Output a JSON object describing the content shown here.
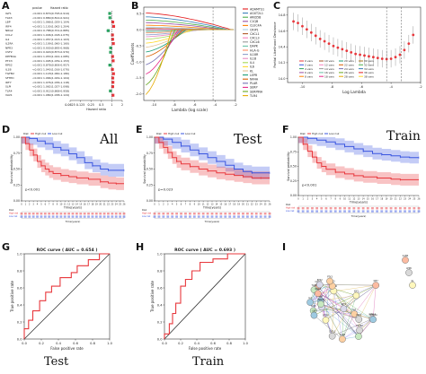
{
  "panels": {
    "A": "A",
    "B": "B",
    "C": "C",
    "D": "D",
    "E": "E",
    "F": "F",
    "G": "G",
    "H": "H",
    "I": "I"
  },
  "labels": {
    "all": "All",
    "test": "Test",
    "train": "Train",
    "test_bottom": "Test",
    "train_bottom": "Train"
  },
  "colors": {
    "high": "#e8383d",
    "low": "#3a56e0",
    "roc": "#e8383d",
    "diag": "#333333"
  },
  "chart_data": [
    {
      "id": "A",
      "type": "forest",
      "columns": [
        "",
        "pvalue",
        "Hazard ratio"
      ],
      "genes": [
        "IGF1",
        "TLR3",
        "LBP",
        "IRF4",
        "NRG2",
        "CCL2",
        "IL2",
        "IL2RA",
        "NPR3",
        "CSF2",
        "DEFB4A",
        "PTX3",
        "RPS2",
        "IL1B",
        "TGFB2",
        "SFTPD",
        "IRF7",
        "SLPI",
        "TLR4",
        "VAV1"
      ],
      "pvalues": [
        "<0.001",
        "<0.001",
        "<0.001",
        "<0.001",
        "<0.001",
        "<0.001",
        "<0.001",
        "<0.001",
        "<0.001",
        "<0.001",
        "<0.001",
        "<0.001",
        "<0.001",
        "<0.001",
        "<0.001",
        "<0.001",
        "<0.001",
        "<0.001",
        "<0.001",
        "<0.001"
      ],
      "hr_text": [
        "0.870(0.795-0.914)",
        "0.880(0.812-0.941)",
        "1.066(1.029-1.104)",
        "1.130(1.062-1.204)",
        "0.788(0.701-0.885)",
        "1.046(1.018-1.075)",
        "1.057(1.013-1.103)",
        "1.109(1.060-1.160)",
        "0.930(0.895-0.968)",
        "0.920(0.873-0.970)",
        "1.053(1.022-1.085)",
        "1.095(1.039-1.153)",
        "0.878(0.806-0.957)",
        "1.043(1.016-1.070)",
        "1.118(1.060-1.180)",
        "1.066(1.029-1.104)",
        "1.076(1.036-1.118)",
        "1.062(1.027-1.098)",
        "0.912(0.868-0.958)",
        "1.080(1.038-1.124)"
      ],
      "hr": [
        0.87,
        0.88,
        1.066,
        1.13,
        0.788,
        1.046,
        1.057,
        1.109,
        0.93,
        0.92,
        1.053,
        1.095,
        0.878,
        1.043,
        1.118,
        1.066,
        1.076,
        1.062,
        0.912,
        1.08
      ],
      "lo": [
        0.795,
        0.812,
        1.029,
        1.062,
        0.701,
        1.018,
        1.013,
        1.06,
        0.895,
        0.873,
        1.022,
        1.039,
        0.806,
        1.016,
        1.06,
        1.029,
        1.036,
        1.027,
        0.868,
        1.038
      ],
      "hi": [
        0.914,
        0.941,
        1.104,
        1.204,
        0.885,
        1.075,
        1.103,
        1.16,
        0.968,
        0.97,
        1.085,
        1.153,
        0.957,
        1.07,
        1.18,
        1.104,
        1.118,
        1.098,
        0.958,
        1.124
      ],
      "xticks": [
        "0.0625",
        "0.125",
        "0.25",
        "0.5",
        "1",
        "2"
      ],
      "xlabel": "Hazard ratio"
    },
    {
      "id": "B",
      "type": "line",
      "xlabel": "Lambda (log scale)",
      "ylabel": "Coefficients",
      "yticks": [
        "0.5",
        "0.0",
        "-0.5",
        "-1.0",
        "-1.5",
        "-2.0"
      ],
      "xticks": [
        "-10",
        "-8",
        "-6",
        "-4",
        "-2"
      ],
      "xlim": [
        -11,
        -2
      ],
      "ylim": [
        -2.2,
        0.7
      ],
      "legend": [
        "ADAMTS1",
        "AGXT2L1",
        "ARID5B",
        "C1QB",
        "CLEC4A",
        "CRIP1",
        "CXCL1",
        "CXCL3",
        "CXCL6",
        "DAPK",
        "HLA-G",
        "IL18R",
        "IL1B",
        "IL4",
        "IL6",
        "KL",
        "LEPR",
        "NR4A",
        "PLAR",
        "SERP",
        "SERPINA",
        "TLR4"
      ],
      "series_colors": [
        "#e41a1c",
        "#377eb8",
        "#4daf4a",
        "#984ea3",
        "#ff7f00",
        "#a6cee3",
        "#b15928",
        "#f781bf",
        "#999999",
        "#66c2a5",
        "#fc8d62",
        "#8da0cb",
        "#e78ac3",
        "#a6d854",
        "#ffd92f",
        "#e5c494",
        "#1b9e77",
        "#d95f02",
        "#7570b3",
        "#e7298a",
        "#66a61e",
        "#e6ab02"
      ],
      "final_values": [
        0.52,
        0.4,
        0.3,
        0.22,
        0.14,
        0.08,
        0.04,
        0.02,
        -0.02,
        -0.06,
        -0.1,
        -0.16,
        -0.22,
        -0.3,
        -0.42,
        -0.55,
        -0.7,
        -0.85,
        -1.1,
        -1.4,
        -1.75,
        -2.05
      ],
      "vline": -4.2
    },
    {
      "id": "C",
      "type": "errorbar",
      "xlabel": "Log Lambda",
      "ylabel": "Partial Likelihood Deviance",
      "xticks": [
        "-10",
        "-8",
        "-6",
        "-4",
        "-2"
      ],
      "yticks": [
        "14.8",
        "14.6",
        "14.4",
        "14.2",
        "14.0"
      ],
      "xlim": [
        -11,
        -2
      ],
      "ylim": [
        13.95,
        14.9
      ],
      "x": [
        -10.6,
        -10.3,
        -10.0,
        -9.7,
        -9.4,
        -9.1,
        -8.8,
        -8.5,
        -8.2,
        -7.9,
        -7.6,
        -7.3,
        -7.0,
        -6.7,
        -6.4,
        -6.1,
        -5.8,
        -5.5,
        -5.2,
        -4.9,
        -4.6,
        -4.3,
        -4.0,
        -3.7,
        -3.4,
        -3.1,
        -2.8,
        -2.5
      ],
      "y": [
        14.72,
        14.7,
        14.66,
        14.62,
        14.58,
        14.54,
        14.5,
        14.47,
        14.44,
        14.41,
        14.39,
        14.37,
        14.35,
        14.33,
        14.31,
        14.3,
        14.29,
        14.28,
        14.27,
        14.26,
        14.25,
        14.245,
        14.25,
        14.27,
        14.3,
        14.36,
        14.44,
        14.55
      ],
      "err": 0.11,
      "vlines": [
        -4.3,
        -3.3
      ],
      "legend": [
        "0 vars",
        "2 vars",
        "4 vars",
        "6 vars",
        "8 vars",
        "10 vars",
        "12 vars",
        "14 vars",
        "16 vars",
        "18 vars",
        "20 vars",
        "22 vars",
        "24 vars",
        "26 vars",
        "28 vars",
        "30 vars",
        "32 vars",
        "34 vars",
        "36 vars",
        "38 vars"
      ]
    },
    {
      "id": "D",
      "type": "survival",
      "legend": [
        "Risk",
        "High risk",
        "Low risk"
      ],
      "ylabel": "Survival probability",
      "xlabel": "Time(years)",
      "pvalue": "p<0.001",
      "yticks": [
        "1.00",
        "0.75",
        "0.50",
        "0.25",
        "0.00"
      ],
      "xticks": [
        "0",
        "1",
        "2",
        "3",
        "4",
        "5",
        "6",
        "7",
        "8",
        "9",
        "10",
        "11",
        "12",
        "13",
        "14",
        "15",
        "16",
        "17",
        "18",
        "19",
        "20",
        "21",
        "22",
        "23",
        "24",
        "25",
        "26"
      ],
      "xmax": 26,
      "high": [
        [
          0,
          1
        ],
        [
          1,
          0.9
        ],
        [
          2,
          0.8
        ],
        [
          3,
          0.72
        ],
        [
          4,
          0.62
        ],
        [
          5,
          0.55
        ],
        [
          6,
          0.5
        ],
        [
          7,
          0.46
        ],
        [
          8,
          0.43
        ],
        [
          10,
          0.4
        ],
        [
          12,
          0.38
        ],
        [
          14,
          0.36
        ],
        [
          17,
          0.34
        ],
        [
          20,
          0.3
        ],
        [
          22,
          0.28
        ],
        [
          24,
          0.27
        ],
        [
          26,
          0.27
        ]
      ],
      "low": [
        [
          0,
          1
        ],
        [
          2,
          0.98
        ],
        [
          4,
          0.94
        ],
        [
          6,
          0.9
        ],
        [
          8,
          0.84
        ],
        [
          10,
          0.8
        ],
        [
          12,
          0.74
        ],
        [
          14,
          0.68
        ],
        [
          16,
          0.6
        ],
        [
          18,
          0.55
        ],
        [
          20,
          0.5
        ],
        [
          22,
          0.48
        ],
        [
          24,
          0.48
        ],
        [
          26,
          0.48
        ]
      ],
      "risk_table_labels": [
        "High risk",
        "Low risk"
      ],
      "risk_title": "Risk"
    },
    {
      "id": "E",
      "type": "survival",
      "legend": [
        "Risk",
        "High risk",
        "Low risk"
      ],
      "ylabel": "Survival probability",
      "xlabel": "Time(years)",
      "pvalue": "p=0.023",
      "yticks": [
        "1.00",
        "0.75",
        "0.50",
        "0.25",
        "0.00"
      ],
      "xticks": [
        "0",
        "1",
        "2",
        "3",
        "4",
        "5",
        "6",
        "7",
        "8",
        "9",
        "10",
        "11",
        "12",
        "13",
        "14",
        "15",
        "16",
        "17",
        "18",
        "19",
        "20",
        "21",
        "22",
        "23",
        "24",
        "25",
        "26"
      ],
      "xmax": 26,
      "high": [
        [
          0,
          1
        ],
        [
          1,
          0.92
        ],
        [
          2,
          0.84
        ],
        [
          3,
          0.76
        ],
        [
          4,
          0.68
        ],
        [
          5,
          0.62
        ],
        [
          6,
          0.58
        ],
        [
          8,
          0.54
        ],
        [
          10,
          0.5
        ],
        [
          12,
          0.47
        ],
        [
          14,
          0.44
        ],
        [
          16,
          0.42
        ],
        [
          18,
          0.4
        ],
        [
          20,
          0.38
        ],
        [
          22,
          0.36
        ],
        [
          24,
          0.36
        ],
        [
          26,
          0.36
        ]
      ],
      "low": [
        [
          0,
          1
        ],
        [
          2,
          0.97
        ],
        [
          4,
          0.92
        ],
        [
          6,
          0.86
        ],
        [
          8,
          0.8
        ],
        [
          10,
          0.74
        ],
        [
          12,
          0.68
        ],
        [
          14,
          0.62
        ],
        [
          16,
          0.56
        ],
        [
          18,
          0.5
        ],
        [
          20,
          0.46
        ],
        [
          22,
          0.44
        ],
        [
          24,
          0.44
        ],
        [
          26,
          0.44
        ]
      ],
      "risk_table_labels": [
        "High risk",
        "Low risk"
      ],
      "risk_title": "Risk"
    },
    {
      "id": "F",
      "type": "survival",
      "legend": [
        "Risk",
        "High risk",
        "Low risk"
      ],
      "ylabel": "Survival probability",
      "xlabel": "Time(years)",
      "pvalue": "p<0.001",
      "yticks": [
        "1.00",
        "0.75",
        "0.50",
        "0.25",
        "0.00"
      ],
      "xticks": [
        "0",
        "1",
        "2",
        "3",
        "4",
        "5",
        "6",
        "7",
        "8",
        "9",
        "10",
        "11",
        "12",
        "13",
        "14",
        "15",
        "16",
        "17",
        "18",
        "19",
        "20",
        "21",
        "22",
        "23",
        "24",
        "25",
        "26"
      ],
      "xmax": 26,
      "high": [
        [
          0,
          1
        ],
        [
          1,
          0.88
        ],
        [
          2,
          0.76
        ],
        [
          3,
          0.66
        ],
        [
          4,
          0.56
        ],
        [
          5,
          0.5
        ],
        [
          6,
          0.45
        ],
        [
          8,
          0.4
        ],
        [
          10,
          0.37
        ],
        [
          12,
          0.34
        ],
        [
          14,
          0.32
        ],
        [
          17,
          0.3
        ],
        [
          20,
          0.28
        ],
        [
          22,
          0.27
        ],
        [
          26,
          0.27
        ]
      ],
      "low": [
        [
          0,
          1
        ],
        [
          2,
          0.98
        ],
        [
          4,
          0.95
        ],
        [
          6,
          0.92
        ],
        [
          8,
          0.88
        ],
        [
          10,
          0.84
        ],
        [
          12,
          0.8
        ],
        [
          14,
          0.76
        ],
        [
          16,
          0.72
        ],
        [
          18,
          0.7
        ],
        [
          20,
          0.68
        ],
        [
          22,
          0.66
        ],
        [
          24,
          0.65
        ],
        [
          26,
          0.65
        ]
      ],
      "risk_table_labels": [
        "High risk",
        "Low risk"
      ],
      "risk_title": "Risk"
    },
    {
      "id": "G",
      "type": "roc",
      "title": "ROC curve ( AUC = 0.654 )",
      "xlabel": "False positive rate",
      "ylabel": "True positive rate",
      "ticks": [
        "0.0",
        "0.2",
        "0.4",
        "0.6",
        "0.8",
        "1.0"
      ],
      "points": [
        [
          0,
          0
        ],
        [
          0,
          0.12
        ],
        [
          0.05,
          0.12
        ],
        [
          0.05,
          0.22
        ],
        [
          0.1,
          0.22
        ],
        [
          0.1,
          0.33
        ],
        [
          0.18,
          0.33
        ],
        [
          0.18,
          0.45
        ],
        [
          0.25,
          0.45
        ],
        [
          0.25,
          0.55
        ],
        [
          0.32,
          0.55
        ],
        [
          0.32,
          0.62
        ],
        [
          0.42,
          0.62
        ],
        [
          0.42,
          0.72
        ],
        [
          0.55,
          0.72
        ],
        [
          0.55,
          0.78
        ],
        [
          0.62,
          0.78
        ],
        [
          0.62,
          0.86
        ],
        [
          0.75,
          0.86
        ],
        [
          0.75,
          0.93
        ],
        [
          0.88,
          0.93
        ],
        [
          0.88,
          1
        ],
        [
          1,
          1
        ]
      ]
    },
    {
      "id": "H",
      "type": "roc",
      "title": "ROC curve ( AUC = 0.693 )",
      "xlabel": "False positive rate",
      "ylabel": "True positive rate",
      "ticks": [
        "0.0",
        "0.2",
        "0.4",
        "0.6",
        "0.8",
        "1.0"
      ],
      "points": [
        [
          0,
          0
        ],
        [
          0,
          0.06
        ],
        [
          0.06,
          0.06
        ],
        [
          0.06,
          0.18
        ],
        [
          0.1,
          0.18
        ],
        [
          0.1,
          0.3
        ],
        [
          0.14,
          0.3
        ],
        [
          0.14,
          0.42
        ],
        [
          0.2,
          0.42
        ],
        [
          0.2,
          0.62
        ],
        [
          0.26,
          0.62
        ],
        [
          0.26,
          0.7
        ],
        [
          0.34,
          0.7
        ],
        [
          0.34,
          0.8
        ],
        [
          0.44,
          0.8
        ],
        [
          0.44,
          0.9
        ],
        [
          0.6,
          0.9
        ],
        [
          0.6,
          0.94
        ],
        [
          0.78,
          0.94
        ],
        [
          0.78,
          1
        ],
        [
          1,
          1
        ]
      ]
    },
    {
      "id": "I",
      "type": "network",
      "nodes": [
        "IL2",
        "IL6",
        "IL1B",
        "CXCL1",
        "CXCL2",
        "CXCL3",
        "CXCL6",
        "CCL2",
        "TLR3",
        "TLR4",
        "IRF4",
        "IRF7",
        "CSF2",
        "IGF1",
        "LBP",
        "PTX3",
        "SLPI",
        "VAV1",
        "NRG2",
        "TGFB2",
        "SFTPD",
        "DEFB4A",
        "IL2RA",
        "NPR3",
        "RPS2",
        "IL18R",
        "LEPR",
        "KL"
      ],
      "edges": 90
    }
  ]
}
